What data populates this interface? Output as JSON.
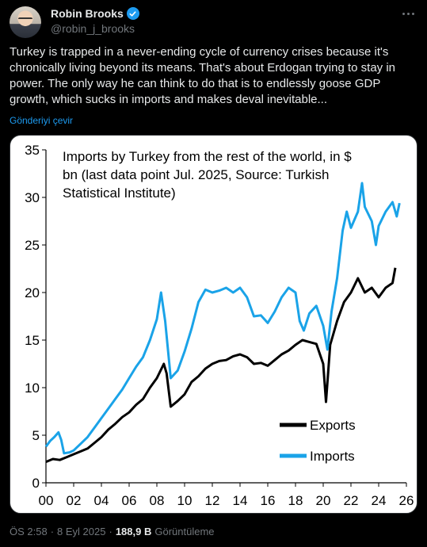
{
  "author": {
    "name": "Robin Brooks",
    "handle": "@robin_j_brooks",
    "verified_icon": "verified-badge-icon"
  },
  "tweet": {
    "text": "Turkey is trapped in a never-ending cycle of currency crises because it's chronically living beyond its means. That's about Erdogan trying to stay in power. The only way he can think to do that is to endlessly goose GDP growth, which sucks in imports and makes deval inevitable...",
    "translate_label": "Gönderiyi çevir"
  },
  "meta": {
    "time": "ÖS 2:58",
    "sep1": "·",
    "date": "8 Eyl 2025",
    "sep2": "·",
    "views": "188,9 B",
    "views_label": "Görüntüleme"
  },
  "chart_data": {
    "type": "line",
    "title_lines": [
      "Imports by Turkey from the rest of the world, in $",
      "bn (last data point Jul. 2025, Source: Turkish",
      "Statistical Institute)"
    ],
    "ylim": [
      0,
      35
    ],
    "yticks": [
      "0",
      "5",
      "10",
      "15",
      "20",
      "25",
      "30",
      "35"
    ],
    "xlim": [
      0,
      26
    ],
    "xticks": [
      "00",
      "02",
      "04",
      "06",
      "08",
      "10",
      "12",
      "14",
      "16",
      "18",
      "20",
      "22",
      "24",
      "26"
    ],
    "colors": {
      "exports": "#000000",
      "imports": "#1aa3e8"
    },
    "legend": [
      "Exports",
      "Imports"
    ],
    "series": [
      {
        "name": "Exports",
        "points": [
          [
            0,
            2.2
          ],
          [
            0.5,
            2.5
          ],
          [
            1,
            2.4
          ],
          [
            1.5,
            2.7
          ],
          [
            2,
            3.0
          ],
          [
            2.5,
            3.3
          ],
          [
            3,
            3.6
          ],
          [
            3.5,
            4.2
          ],
          [
            4,
            4.8
          ],
          [
            4.5,
            5.6
          ],
          [
            5,
            6.2
          ],
          [
            5.5,
            6.9
          ],
          [
            6,
            7.4
          ],
          [
            6.5,
            8.2
          ],
          [
            7,
            8.8
          ],
          [
            7.5,
            10.0
          ],
          [
            8,
            11.0
          ],
          [
            8.5,
            12.5
          ],
          [
            8.7,
            11.5
          ],
          [
            9,
            8.0
          ],
          [
            9.5,
            8.6
          ],
          [
            10,
            9.3
          ],
          [
            10.5,
            10.6
          ],
          [
            11,
            11.2
          ],
          [
            11.5,
            12.0
          ],
          [
            12,
            12.5
          ],
          [
            12.5,
            12.8
          ],
          [
            13,
            12.9
          ],
          [
            13.5,
            13.3
          ],
          [
            14,
            13.5
          ],
          [
            14.5,
            13.2
          ],
          [
            15,
            12.5
          ],
          [
            15.5,
            12.6
          ],
          [
            16,
            12.3
          ],
          [
            16.5,
            12.9
          ],
          [
            17,
            13.5
          ],
          [
            17.5,
            13.9
          ],
          [
            18,
            14.5
          ],
          [
            18.5,
            15.0
          ],
          [
            19,
            14.8
          ],
          [
            19.5,
            14.6
          ],
          [
            20,
            12.5
          ],
          [
            20.2,
            8.5
          ],
          [
            20.5,
            14.5
          ],
          [
            21,
            17.0
          ],
          [
            21.5,
            19.0
          ],
          [
            22,
            20.0
          ],
          [
            22.5,
            21.5
          ],
          [
            23,
            20.0
          ],
          [
            23.5,
            20.5
          ],
          [
            24,
            19.5
          ],
          [
            24.5,
            20.5
          ],
          [
            25,
            21.0
          ],
          [
            25.2,
            22.6
          ]
        ]
      },
      {
        "name": "Imports",
        "points": [
          [
            0,
            3.8
          ],
          [
            0.3,
            4.4
          ],
          [
            0.6,
            4.8
          ],
          [
            0.9,
            5.3
          ],
          [
            1.1,
            4.5
          ],
          [
            1.3,
            3.1
          ],
          [
            1.7,
            3.2
          ],
          [
            2,
            3.4
          ],
          [
            2.5,
            4.1
          ],
          [
            3,
            4.8
          ],
          [
            3.5,
            5.8
          ],
          [
            4,
            6.8
          ],
          [
            4.5,
            7.8
          ],
          [
            5,
            8.8
          ],
          [
            5.5,
            9.8
          ],
          [
            6,
            11.0
          ],
          [
            6.5,
            12.2
          ],
          [
            7,
            13.2
          ],
          [
            7.5,
            15.0
          ],
          [
            8,
            17.2
          ],
          [
            8.3,
            20.0
          ],
          [
            8.6,
            17.0
          ],
          [
            9,
            11.0
          ],
          [
            9.5,
            11.8
          ],
          [
            10,
            13.8
          ],
          [
            10.5,
            16.2
          ],
          [
            11,
            19.0
          ],
          [
            11.5,
            20.3
          ],
          [
            12,
            20.0
          ],
          [
            12.5,
            20.2
          ],
          [
            13,
            20.5
          ],
          [
            13.5,
            20.0
          ],
          [
            14,
            20.5
          ],
          [
            14.5,
            19.5
          ],
          [
            15,
            17.5
          ],
          [
            15.5,
            17.6
          ],
          [
            16,
            16.8
          ],
          [
            16.5,
            18.0
          ],
          [
            17,
            19.5
          ],
          [
            17.5,
            20.5
          ],
          [
            18,
            20.0
          ],
          [
            18.3,
            17.0
          ],
          [
            18.6,
            16.0
          ],
          [
            19,
            17.8
          ],
          [
            19.5,
            18.6
          ],
          [
            20,
            16.5
          ],
          [
            20.3,
            14.0
          ],
          [
            20.6,
            18.0
          ],
          [
            21,
            21.5
          ],
          [
            21.4,
            26.5
          ],
          [
            21.7,
            28.5
          ],
          [
            22,
            26.8
          ],
          [
            22.5,
            28.5
          ],
          [
            22.8,
            31.5
          ],
          [
            23,
            29.0
          ],
          [
            23.5,
            27.5
          ],
          [
            23.8,
            25.0
          ],
          [
            24,
            27.0
          ],
          [
            24.5,
            28.5
          ],
          [
            25,
            29.5
          ],
          [
            25.3,
            28.0
          ],
          [
            25.5,
            29.4
          ]
        ]
      }
    ]
  }
}
